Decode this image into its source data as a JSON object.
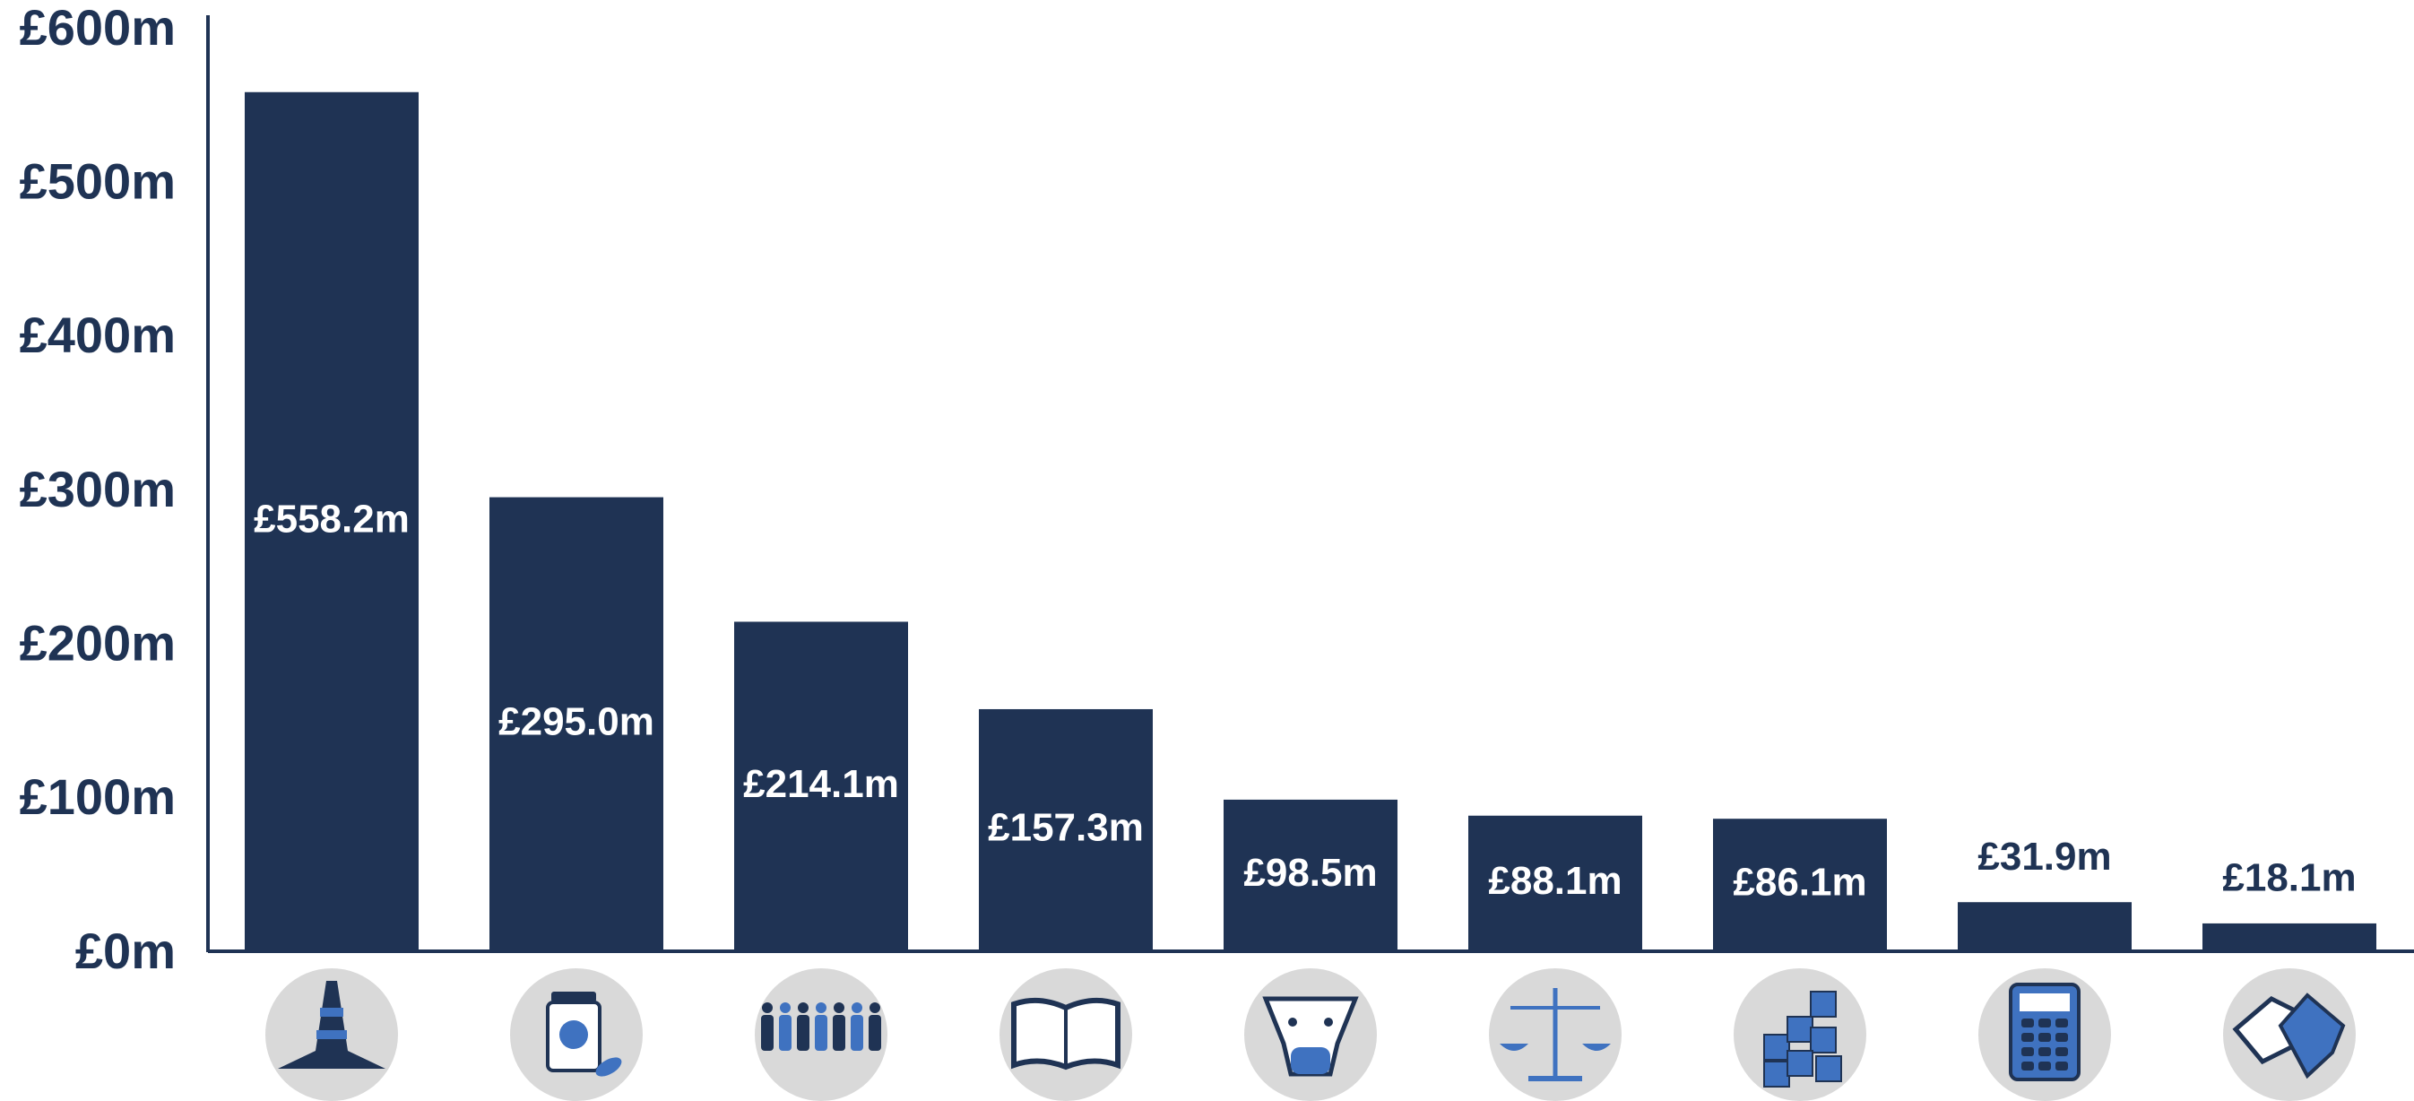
{
  "chart_data": {
    "type": "bar",
    "categories": [
      null,
      null,
      null,
      null,
      null,
      null,
      null,
      null,
      null
    ],
    "values": [
      558.2,
      295.0,
      214.1,
      157.3,
      98.5,
      88.1,
      86.1,
      31.9,
      18.1
    ],
    "value_labels": [
      "£558.2m",
      "£295.0m",
      "£214.1m",
      "£157.3m",
      "£98.5m",
      "£88.1m",
      "£86.1m",
      "£31.9m",
      "£18.1m"
    ],
    "color": "#1f3354",
    "ylim": [
      0,
      600
    ],
    "yticks": [
      {
        "value": 0,
        "label": "£0m"
      },
      {
        "value": 100,
        "label": "£100m"
      },
      {
        "value": 200,
        "label": "£200m"
      },
      {
        "value": 300,
        "label": "£300m"
      },
      {
        "value": 400,
        "label": "£400m"
      },
      {
        "value": 500,
        "label": "£500m"
      },
      {
        "value": 600,
        "label": "£600m"
      }
    ],
    "grid": false
  }
}
